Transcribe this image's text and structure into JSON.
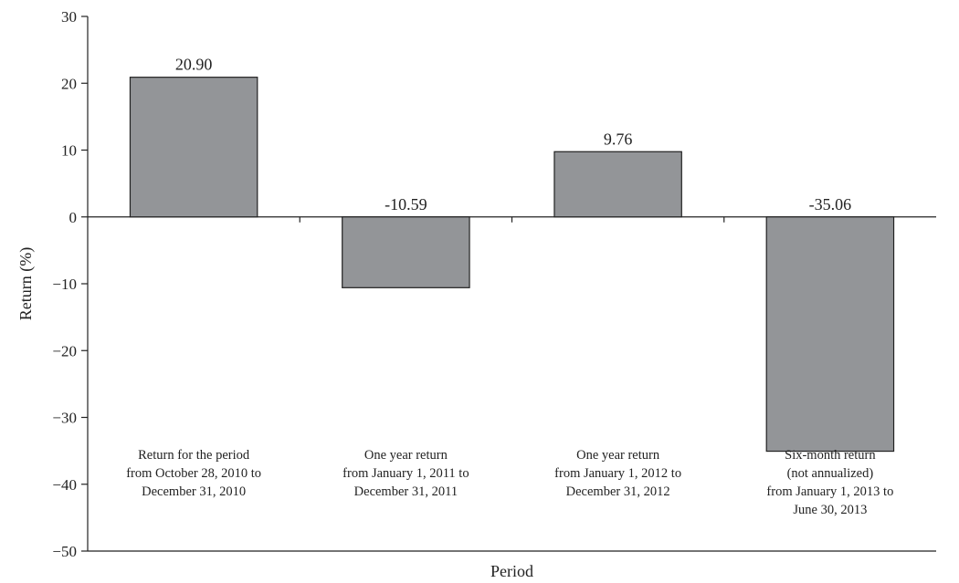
{
  "chart_data": {
    "type": "bar",
    "title": "",
    "xlabel": "Period",
    "ylabel": "Return (%)",
    "ylim": [
      -50,
      30
    ],
    "yticks": [
      30,
      20,
      10,
      0,
      -10,
      -20,
      -30,
      -40,
      -50
    ],
    "categories": [
      [
        "Return for the period",
        "from October 28, 2010 to",
        "December 31, 2010"
      ],
      [
        "One year return",
        "from January 1, 2011 to",
        "December 31, 2011"
      ],
      [
        "One year return",
        "from January 1, 2012 to",
        "December 31, 2012"
      ],
      [
        "Six-month return",
        "(not annualized)",
        "from January 1, 2013 to",
        "June 30, 2013"
      ]
    ],
    "values": [
      20.9,
      -10.59,
      9.76,
      -35.06
    ],
    "value_labels": [
      "20.90",
      "-10.59",
      "9.76",
      "-35.06"
    ],
    "bar_color": "#939598",
    "grid": false
  }
}
